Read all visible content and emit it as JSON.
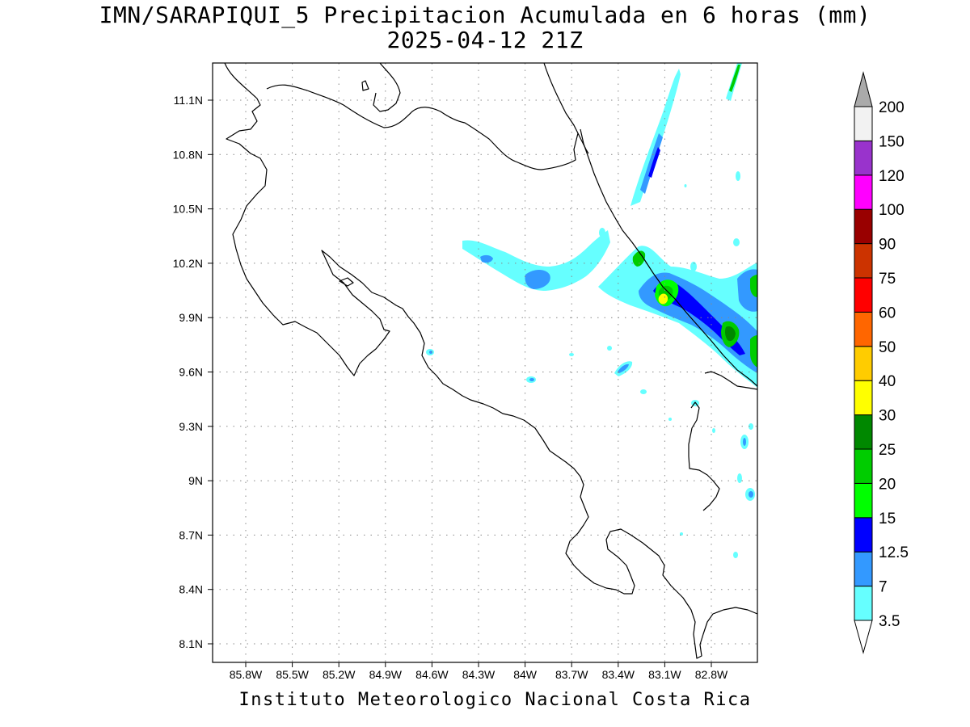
{
  "title": {
    "line1": "IMN/SARAPIQUI_5 Precipitacion Acumulada en 6 horas (mm)",
    "line2": "2025-04-12 21Z"
  },
  "footer": "Instituto Meteorologico Nacional Costa Rica",
  "map": {
    "region": "Costa Rica",
    "lon_range": [
      -86.0,
      -82.5
    ],
    "lat_range": [
      8.0,
      11.3
    ],
    "gridlines": "dotted",
    "lat_ticks": [
      "11.1N",
      "10.8N",
      "10.5N",
      "10.2N",
      "9.9N",
      "9.6N",
      "9.3N",
      "9N",
      "8.7N",
      "8.4N",
      "8.1N"
    ],
    "lon_ticks": [
      "85.8W",
      "85.5W",
      "85.2W",
      "84.9W",
      "84.6W",
      "84.3W",
      "84W",
      "83.7W",
      "83.4W",
      "83.1W",
      "82.8W"
    ]
  },
  "colorbar": {
    "labels": [
      "3.5",
      "7",
      "12.5",
      "15",
      "20",
      "25",
      "30",
      "40",
      "50",
      "60",
      "75",
      "90",
      "100",
      "120",
      "150",
      "200"
    ],
    "colors": [
      "#ffffff",
      "#66ffff",
      "#3399ff",
      "#0000ff",
      "#00ff00",
      "#00cc00",
      "#008800",
      "#ffff00",
      "#ffcc00",
      "#ff6600",
      "#ff0000",
      "#cc3300",
      "#990000",
      "#ff00ff",
      "#9933cc",
      "#f2f2f2",
      "#aaaaaa"
    ]
  }
}
